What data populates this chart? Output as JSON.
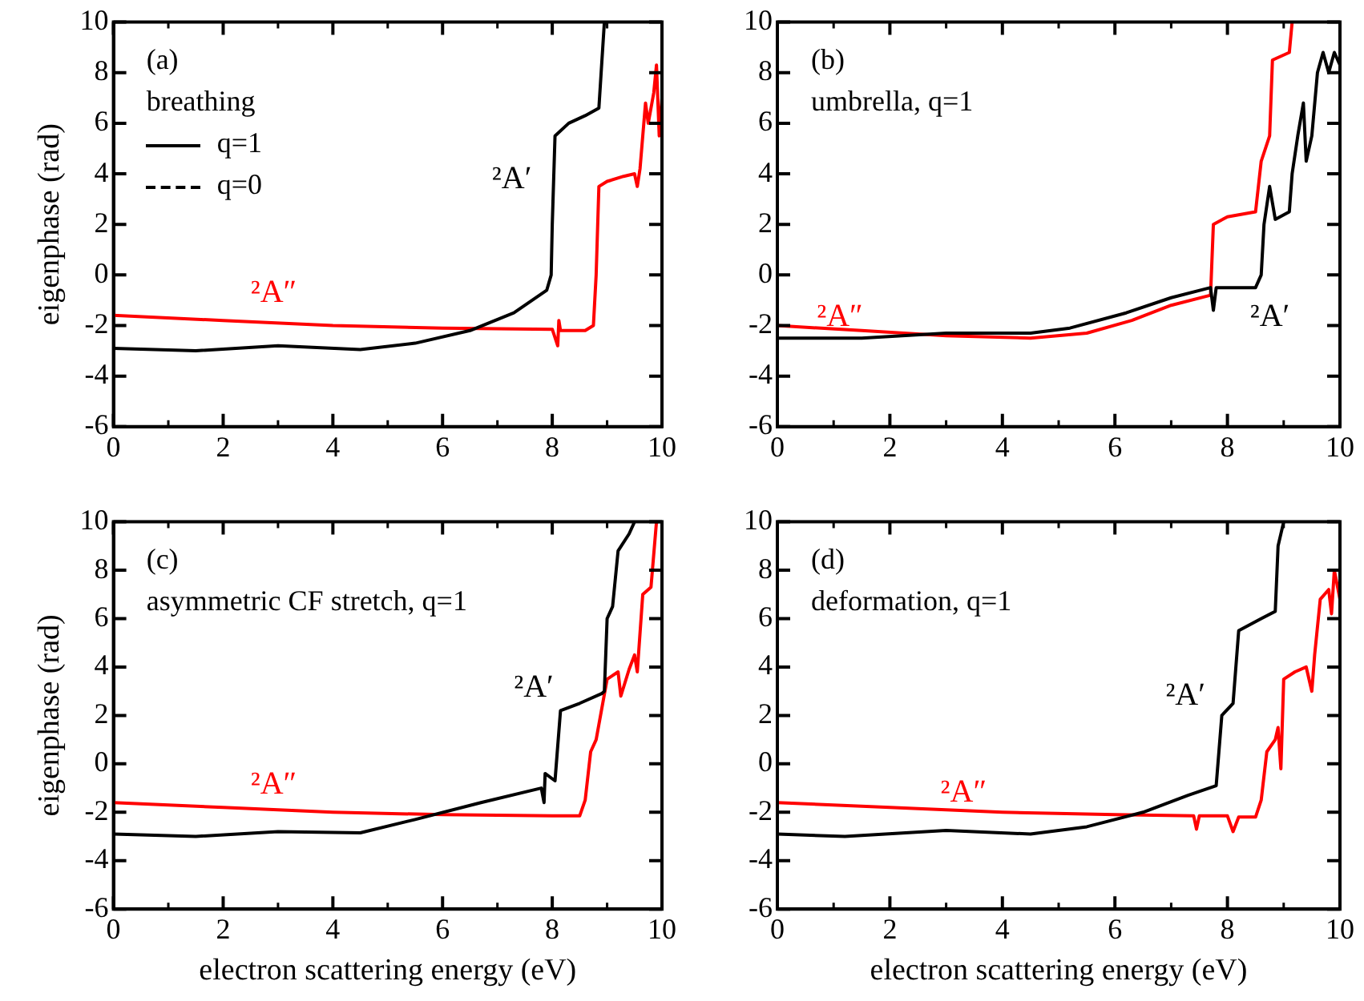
{
  "chart_data": [
    {
      "type": "line",
      "ylabel": "eigenphase (rad)",
      "xlim": [
        0,
        10
      ],
      "xticks": [
        0,
        2,
        4,
        6,
        8,
        10
      ],
      "ylim": [
        -6,
        10
      ],
      "yticks": [
        -6,
        -4,
        -2,
        0,
        2,
        4,
        6,
        8,
        10
      ],
      "marker": "none",
      "line_style": "solid",
      "annotations": [
        "(a)",
        "breathing",
        "q=1",
        "q=0"
      ],
      "series": [
        {
          "name": "²A′",
          "color": "#000000",
          "x": [
            0,
            1.5,
            3,
            4.5,
            5.5,
            6.5,
            7.3,
            7.9,
            7.98,
            8.0,
            8.05,
            8.3,
            8.6,
            8.85,
            8.95
          ],
          "values": [
            -2.9,
            -3.0,
            -2.8,
            -2.95,
            -2.7,
            -2.2,
            -1.5,
            -0.6,
            0,
            2,
            5.5,
            6.0,
            6.3,
            6.6,
            10
          ]
        },
        {
          "name": "²A″",
          "color": "#ff0000",
          "x": [
            0,
            2,
            4,
            6,
            8,
            8.1,
            8.12,
            8.15,
            8.6,
            8.75,
            8.8,
            8.85,
            9.0,
            9.3,
            9.5,
            9.55,
            9.6,
            9.7,
            9.75,
            9.85,
            9.9,
            9.95,
            10
          ],
          "values": [
            -1.6,
            -1.8,
            -2.0,
            -2.1,
            -2.15,
            -2.8,
            -1.8,
            -2.2,
            -2.2,
            -2.0,
            0,
            3.5,
            3.7,
            3.9,
            4.0,
            3.5,
            4.2,
            6.8,
            6.0,
            7.2,
            8.3,
            5.5,
            7.0
          ]
        }
      ]
    },
    {
      "type": "line",
      "xlim": [
        0,
        10
      ],
      "xticks": [
        0,
        2,
        4,
        6,
        8,
        10
      ],
      "ylim": [
        -6,
        10
      ],
      "yticks": [
        -6,
        -4,
        -2,
        0,
        2,
        4,
        6,
        8,
        10
      ],
      "marker": "none",
      "line_style": "solid",
      "annotations": [
        "(b)",
        "umbrella, q=1"
      ],
      "series": [
        {
          "name": "²A′",
          "color": "#000000",
          "x": [
            0,
            1.5,
            3,
            4.5,
            5.2,
            6.2,
            7,
            7.7,
            7.75,
            7.8,
            8.5,
            8.6,
            8.65,
            8.75,
            8.85,
            9.1,
            9.15,
            9.25,
            9.35,
            9.4,
            9.5,
            9.6,
            9.7,
            9.8,
            9.9,
            10
          ],
          "values": [
            -2.5,
            -2.5,
            -2.3,
            -2.3,
            -2.1,
            -1.5,
            -0.9,
            -0.5,
            -1.4,
            -0.5,
            -0.5,
            0,
            2,
            3.5,
            2.2,
            2.5,
            4,
            5.5,
            6.8,
            4.5,
            5.5,
            8.0,
            8.8,
            8.0,
            8.8,
            8.3
          ]
        },
        {
          "name": "²A″",
          "color": "#ff0000",
          "x": [
            0,
            1.5,
            3,
            4.5,
            5.5,
            6.3,
            7,
            7.7,
            7.75,
            8,
            8.5,
            8.6,
            8.75,
            8.8,
            9.1,
            9.15
          ],
          "values": [
            -2.0,
            -2.2,
            -2.4,
            -2.5,
            -2.3,
            -1.8,
            -1.2,
            -0.8,
            2,
            2.3,
            2.5,
            4.5,
            5.5,
            8.5,
            8.8,
            10
          ]
        }
      ]
    },
    {
      "type": "line",
      "xlabel": "electron scattering energy (eV)",
      "ylabel": "eigenphase (rad)",
      "xlim": [
        0,
        10
      ],
      "xticks": [
        0,
        2,
        4,
        6,
        8,
        10
      ],
      "ylim": [
        -6,
        10
      ],
      "yticks": [
        -6,
        -4,
        -2,
        0,
        2,
        4,
        6,
        8,
        10
      ],
      "marker": "none",
      "line_style": "solid",
      "annotations": [
        "(c)",
        "asymmetric CF stretch, q=1"
      ],
      "series": [
        {
          "name": "²A′",
          "color": "#000000",
          "x": [
            0,
            1.5,
            3,
            4.5,
            5.5,
            6.7,
            7.8,
            7.85,
            7.87,
            8.05,
            8.15,
            8.5,
            8.9,
            8.95,
            9.0,
            9.1,
            9.2,
            9.4,
            9.5
          ],
          "values": [
            -2.9,
            -3.0,
            -2.8,
            -2.85,
            -2.3,
            -1.6,
            -1.0,
            -1.6,
            -0.4,
            -0.7,
            2.2,
            2.5,
            2.9,
            3.0,
            6,
            6.5,
            8.8,
            9.5,
            10
          ]
        },
        {
          "name": "²A″",
          "color": "#ff0000",
          "x": [
            0,
            2,
            4,
            6,
            8,
            8.5,
            8.6,
            8.7,
            8.8,
            9.0,
            9.2,
            9.25,
            9.4,
            9.5,
            9.55,
            9.65,
            9.8,
            9.9
          ],
          "values": [
            -1.6,
            -1.8,
            -2.0,
            -2.1,
            -2.15,
            -2.15,
            -1.5,
            0.5,
            1.0,
            3.5,
            3.8,
            2.8,
            3.9,
            4.5,
            3.8,
            7,
            7.3,
            10
          ]
        }
      ]
    },
    {
      "type": "line",
      "xlabel": "electron scattering energy (eV)",
      "xlim": [
        0,
        10
      ],
      "xticks": [
        0,
        2,
        4,
        6,
        8,
        10
      ],
      "ylim": [
        -6,
        10
      ],
      "yticks": [
        -6,
        -4,
        -2,
        0,
        2,
        4,
        6,
        8,
        10
      ],
      "marker": "none",
      "line_style": "solid",
      "annotations": [
        "(d)",
        "deformation, q=1"
      ],
      "series": [
        {
          "name": "²A′",
          "color": "#000000",
          "x": [
            0,
            1.2,
            3,
            4.5,
            5.5,
            6.5,
            7.3,
            7.8,
            7.9,
            8.1,
            8.2,
            8.6,
            8.85,
            8.9,
            9.0
          ],
          "values": [
            -2.9,
            -3.0,
            -2.75,
            -2.9,
            -2.6,
            -2.0,
            -1.3,
            -0.9,
            2.0,
            2.5,
            5.5,
            6.0,
            6.3,
            9,
            10
          ]
        },
        {
          "name": "²A″",
          "color": "#ff0000",
          "x": [
            0,
            2,
            4,
            6,
            7.4,
            7.45,
            7.5,
            8,
            8.1,
            8.2,
            8.5,
            8.6,
            8.7,
            8.85,
            8.9,
            8.95,
            9.0,
            9.2,
            9.4,
            9.5,
            9.55,
            9.65,
            9.8,
            9.85,
            9.9,
            10
          ],
          "values": [
            -1.6,
            -1.8,
            -2.0,
            -2.1,
            -2.15,
            -2.7,
            -2.15,
            -2.15,
            -2.8,
            -2.2,
            -2.2,
            -1.5,
            0.5,
            1.0,
            1.5,
            -0.2,
            3.5,
            3.8,
            4.0,
            3.0,
            4.5,
            6.8,
            7.2,
            6.2,
            8.0,
            6.8
          ]
        }
      ]
    }
  ]
}
